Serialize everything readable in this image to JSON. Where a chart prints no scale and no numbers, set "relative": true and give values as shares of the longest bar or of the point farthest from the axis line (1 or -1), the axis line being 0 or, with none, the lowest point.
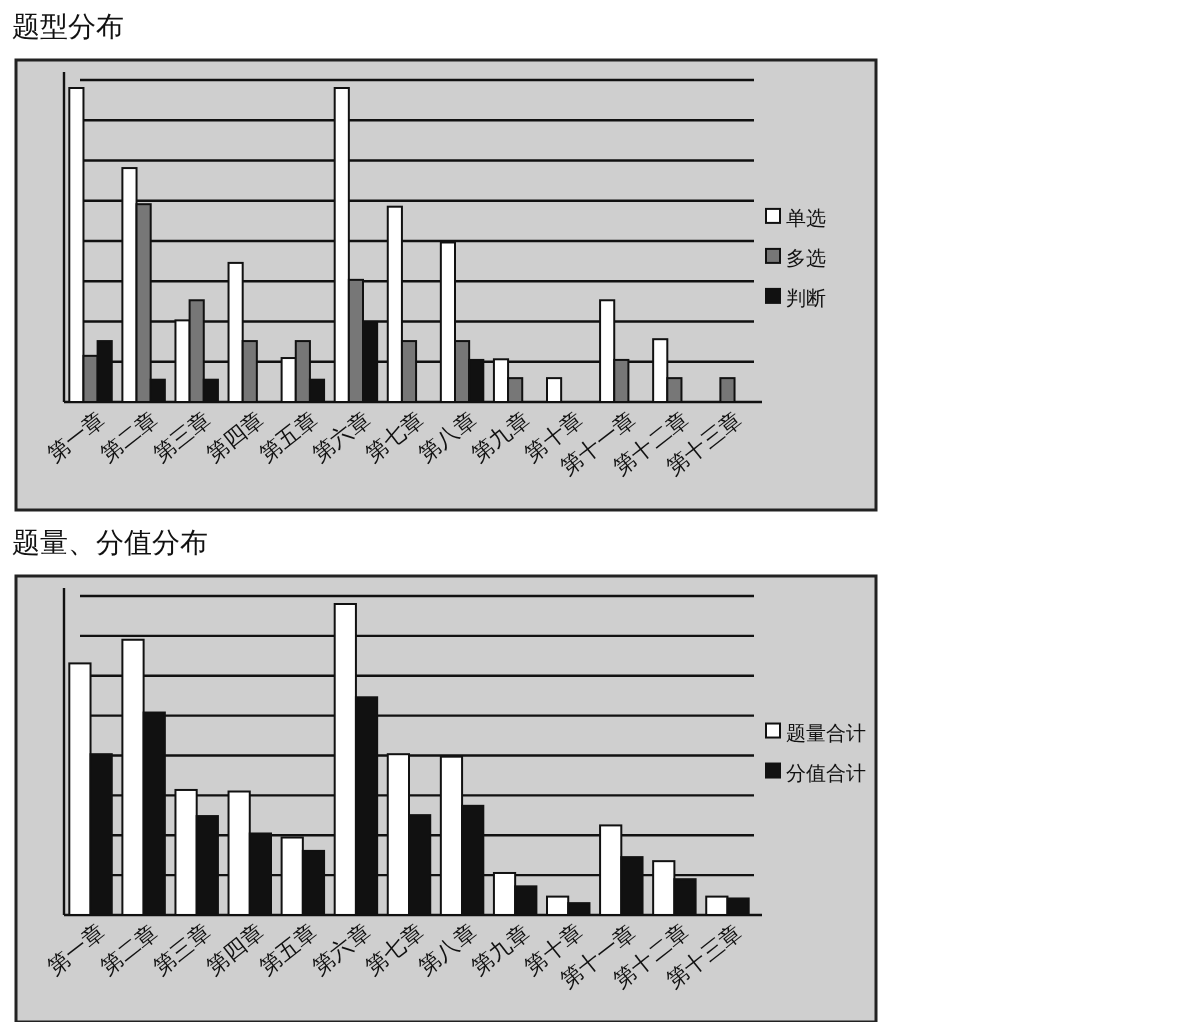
{
  "chart_data": [
    {
      "type": "bar",
      "title": "题型分布",
      "relative": true,
      "grid": "y",
      "legend": "right",
      "categories": [
        "第一章",
        "第二章",
        "第三章",
        "第四章",
        "第五章",
        "第六章",
        "第七章",
        "第八章",
        "第九章",
        "第十章",
        "第十一章",
        "第十二章",
        "第十三章"
      ],
      "series": [
        {
          "name": "单选",
          "color": "#ffffff",
          "values": [
            1,
            0.745,
            0.26,
            0.443,
            0.14,
            1,
            0.622,
            0.508,
            0.136,
            0.076,
            0.324,
            0.2,
            null
          ]
        },
        {
          "name": "多选",
          "color": "#777777",
          "values": [
            0.147,
            0.63,
            0.324,
            0.194,
            0.194,
            0.389,
            0.194,
            0.194,
            0.076,
            null,
            0.134,
            0.076,
            0.076
          ]
        },
        {
          "name": "判断",
          "color": "#111111",
          "values": [
            0.194,
            0.071,
            0.071,
            null,
            0.071,
            0.255,
            null,
            0.134,
            null,
            null,
            null,
            null,
            null
          ]
        }
      ]
    },
    {
      "type": "bar",
      "title": "题量、分值分布",
      "relative": true,
      "grid": "y",
      "legend": "right",
      "categories": [
        "第一章",
        "第二章",
        "第三章",
        "第四章",
        "第五章",
        "第六章",
        "第七章",
        "第八章",
        "第九章",
        "第十章",
        "第十一章",
        "第十二章",
        "第十三章"
      ],
      "series": [
        {
          "name": "题量合计",
          "color": "#ffffff",
          "values": [
            0.809,
            0.885,
            0.402,
            0.397,
            0.249,
            1,
            0.517,
            0.509,
            0.135,
            0.059,
            0.288,
            0.173,
            0.059
          ]
        },
        {
          "name": "分值合计",
          "color": "#111111",
          "values": [
            0.517,
            0.651,
            0.318,
            0.262,
            0.206,
            0.7,
            0.321,
            0.351,
            0.092,
            0.038,
            0.186,
            0.115,
            0.053
          ]
        }
      ]
    }
  ]
}
